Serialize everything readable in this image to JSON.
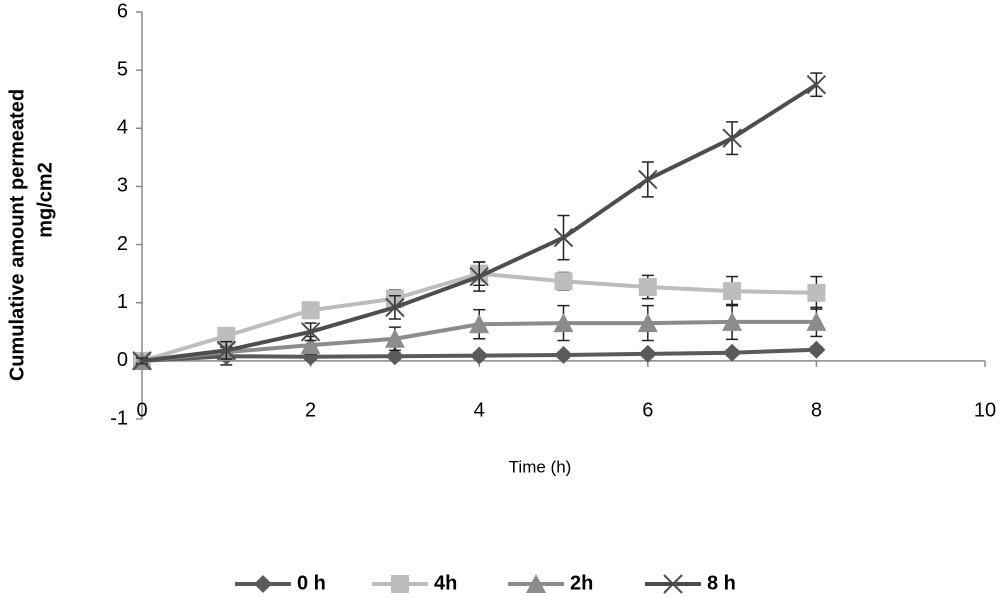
{
  "chart_data": {
    "type": "line",
    "ylabel": [
      "Cumulative amount permeated",
      "mg/cm2"
    ],
    "xlabel": "Time (h)",
    "x": [
      0,
      1,
      2,
      3,
      4,
      5,
      6,
      7,
      8
    ],
    "xlim": [
      0,
      10
    ],
    "xticks": [
      0,
      2,
      4,
      6,
      8,
      10
    ],
    "ylim": [
      -1,
      6
    ],
    "yticks": [
      -1,
      0,
      1,
      2,
      3,
      4,
      5,
      6
    ],
    "grid": false,
    "legend": "bottom",
    "series": [
      {
        "name": "0 h",
        "color": "#5a5a5a",
        "marker": "diamond",
        "values": [
          0,
          0.08,
          0.07,
          0.08,
          0.09,
          0.1,
          0.12,
          0.14,
          0.19
        ],
        "errors": [
          0.05,
          0.15,
          0.05,
          0.05,
          0.05,
          0.05,
          0.05,
          0.05,
          0.05
        ]
      },
      {
        "name": "4h",
        "color": "#bdbdbd",
        "marker": "square",
        "values": [
          0,
          0.43,
          0.87,
          1.07,
          1.5,
          1.37,
          1.27,
          1.2,
          1.17
        ],
        "errors": [
          0.05,
          0.1,
          0.1,
          0.15,
          0.2,
          0.15,
          0.2,
          0.25,
          0.28
        ]
      },
      {
        "name": "2h",
        "color": "#8c8c8c",
        "marker": "triangle",
        "values": [
          0,
          0.15,
          0.27,
          0.38,
          0.63,
          0.65,
          0.65,
          0.67,
          0.67
        ],
        "errors": [
          0.05,
          0.1,
          0.15,
          0.2,
          0.25,
          0.3,
          0.3,
          0.3,
          0.25
        ]
      },
      {
        "name": "8 h",
        "color": "#4d4d4d",
        "marker": "x",
        "values": [
          0,
          0.18,
          0.5,
          0.92,
          1.45,
          2.12,
          3.12,
          3.83,
          4.75
        ],
        "errors": [
          0.05,
          0.15,
          0.15,
          0.2,
          0.25,
          0.38,
          0.3,
          0.28,
          0.2
        ]
      }
    ]
  }
}
